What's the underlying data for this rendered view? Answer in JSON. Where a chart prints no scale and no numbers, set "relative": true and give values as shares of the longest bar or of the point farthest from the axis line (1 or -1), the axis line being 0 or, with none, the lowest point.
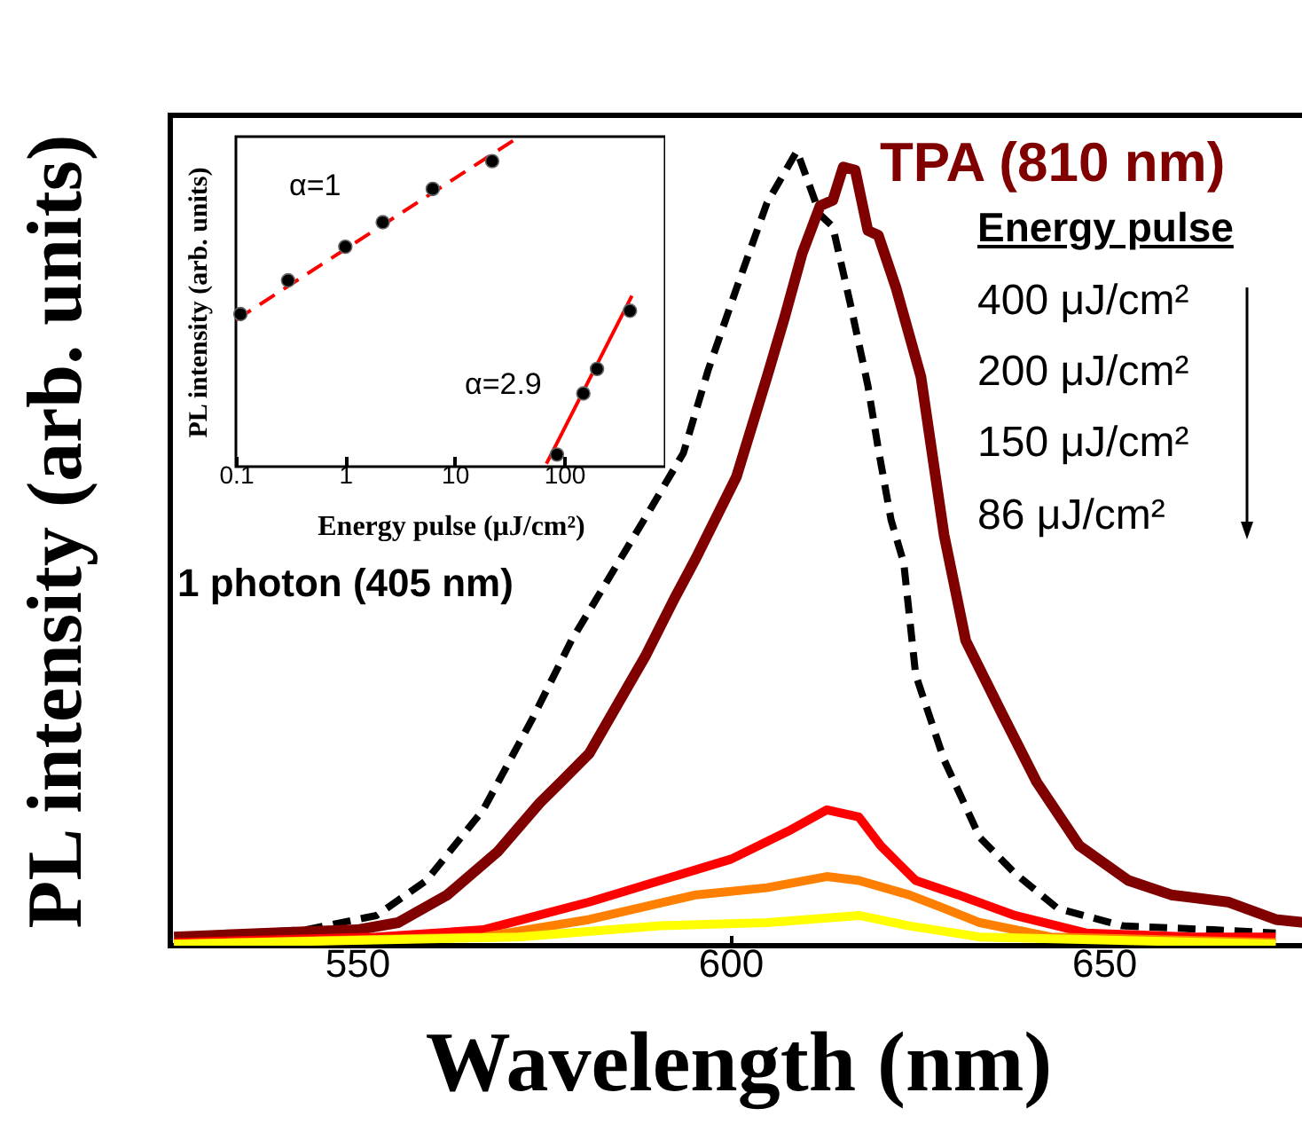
{
  "chart_data": [
    {
      "type": "line",
      "xlabel": "Wavelength (nm)",
      "ylabel": "PL intensity (arb. units)",
      "xlim": [
        525,
        677
      ],
      "xticks": [
        550,
        600,
        650
      ],
      "relative": true,
      "grid": false,
      "annotations": [
        "TPA (810 nm)",
        "Energy pulse",
        "400 μJ/cm²",
        "200 μJ/cm²",
        "150 μJ/cm²",
        "86 μJ/cm²",
        "1 photon (405 nm)"
      ],
      "series": [
        {
          "color": "#000000",
          "line_style": "dashed",
          "x": [
            526,
            543.1,
            552.6,
            559.3,
            566.9,
            573.5,
            578.7,
            589,
            593.7,
            597,
            600.8,
            604.9,
            608.9,
            612,
            613.7,
            616,
            618.4,
            619.8,
            621.5,
            623.2,
            624.8,
            628.6,
            633.4,
            638.1,
            643.8,
            652.4,
            664.7,
            673
          ],
          "values": [
            0.011,
            0.02,
            0.038,
            0.082,
            0.171,
            0.286,
            0.384,
            0.545,
            0.62,
            0.724,
            0.827,
            0.935,
            1,
            0.92,
            0.905,
            0.81,
            0.705,
            0.625,
            0.536,
            0.482,
            0.341,
            0.234,
            0.136,
            0.091,
            0.047,
            0.025,
            0.02,
            0.016
          ]
        },
        {
          "color": "#800000",
          "line_style": "solid",
          "x": [
            525.5,
            538.4,
            550,
            555.5,
            562.1,
            568.8,
            574.5,
            577.3,
            581.1,
            584.9,
            588.7,
            592.5,
            595.4,
            600.8,
            604.9,
            607.2,
            609.6,
            612,
            613.7,
            615.1,
            616.7,
            618.4,
            619.8,
            622.2,
            625.5,
            628.6,
            631.5,
            636.2,
            641,
            646.7,
            653.3,
            659,
            666.6,
            673,
            677
          ],
          "values": [
            0.011,
            0.016,
            0.02,
            0.029,
            0.064,
            0.118,
            0.18,
            0.206,
            0.242,
            0.304,
            0.366,
            0.437,
            0.488,
            0.59,
            0.716,
            0.789,
            0.871,
            0.931,
            0.938,
            0.98,
            0.976,
            0.9,
            0.894,
            0.827,
            0.716,
            0.517,
            0.384,
            0.295,
            0.206,
            0.126,
            0.082,
            0.064,
            0.055,
            0.033,
            0.029
          ]
        },
        {
          "color": "#ff0000",
          "line_style": "solid",
          "x": [
            525.5,
            552.6,
            566.9,
            581.1,
            590.6,
            600.1,
            607.7,
            612.9,
            617.2,
            620.1,
            624.8,
            630.5,
            638.1,
            647.6,
            661.9,
            673
          ],
          "values": [
            0.004,
            0.011,
            0.02,
            0.055,
            0.082,
            0.109,
            0.144,
            0.171,
            0.162,
            0.126,
            0.082,
            0.064,
            0.038,
            0.016,
            0.011,
            0.011
          ]
        },
        {
          "color": "#ff8000",
          "line_style": "solid",
          "x": [
            525.5,
            566.9,
            581.1,
            595.4,
            604.9,
            612.9,
            617.2,
            623.9,
            628.6,
            633.4,
            642.9,
            673
          ],
          "values": [
            0.002,
            0.011,
            0.033,
            0.064,
            0.073,
            0.087,
            0.082,
            0.064,
            0.047,
            0.029,
            0.011,
            0.004
          ]
        },
        {
          "color": "#ffff00",
          "line_style": "solid",
          "x": [
            525.5,
            571.6,
            590.6,
            604.9,
            617.2,
            623.9,
            633.4,
            673
          ],
          "values": [
            0.002,
            0.011,
            0.025,
            0.029,
            0.038,
            0.025,
            0.011,
            0.002
          ]
        }
      ]
    },
    {
      "type": "scatter",
      "xlabel": "Energy pulse (μJ/cm²)",
      "ylabel": "PL intensity (arb. units)",
      "log": "x",
      "xlim": [
        0.1,
        840
      ],
      "xticks": [
        0.1,
        1,
        10,
        100
      ],
      "relative": true,
      "grid": false,
      "annotations": [
        "α=1",
        "α=2.9"
      ],
      "series": [
        {
          "type": "line",
          "color": "#ff0000",
          "line_style": "dashed",
          "x": [
            0.1,
            35
          ],
          "values": [
            0.449,
            1
          ]
        },
        {
          "type": "line",
          "color": "#ff0000",
          "line_style": "solid",
          "x": [
            69,
            417
          ],
          "values": [
            0.009,
            0.523
          ]
        },
        {
          "color": "#000000",
          "marker": "circle",
          "x": [
            0.11,
            0.3,
            1,
            2.2,
            6.3,
            22
          ],
          "values": [
            0.467,
            0.57,
            0.673,
            0.748,
            0.85,
            0.935
          ]
        },
        {
          "color": "#000000",
          "marker": "circle",
          "x": [
            86,
            150,
            200,
            400
          ],
          "values": [
            0.037,
            0.224,
            0.299,
            0.477
          ]
        }
      ]
    }
  ]
}
